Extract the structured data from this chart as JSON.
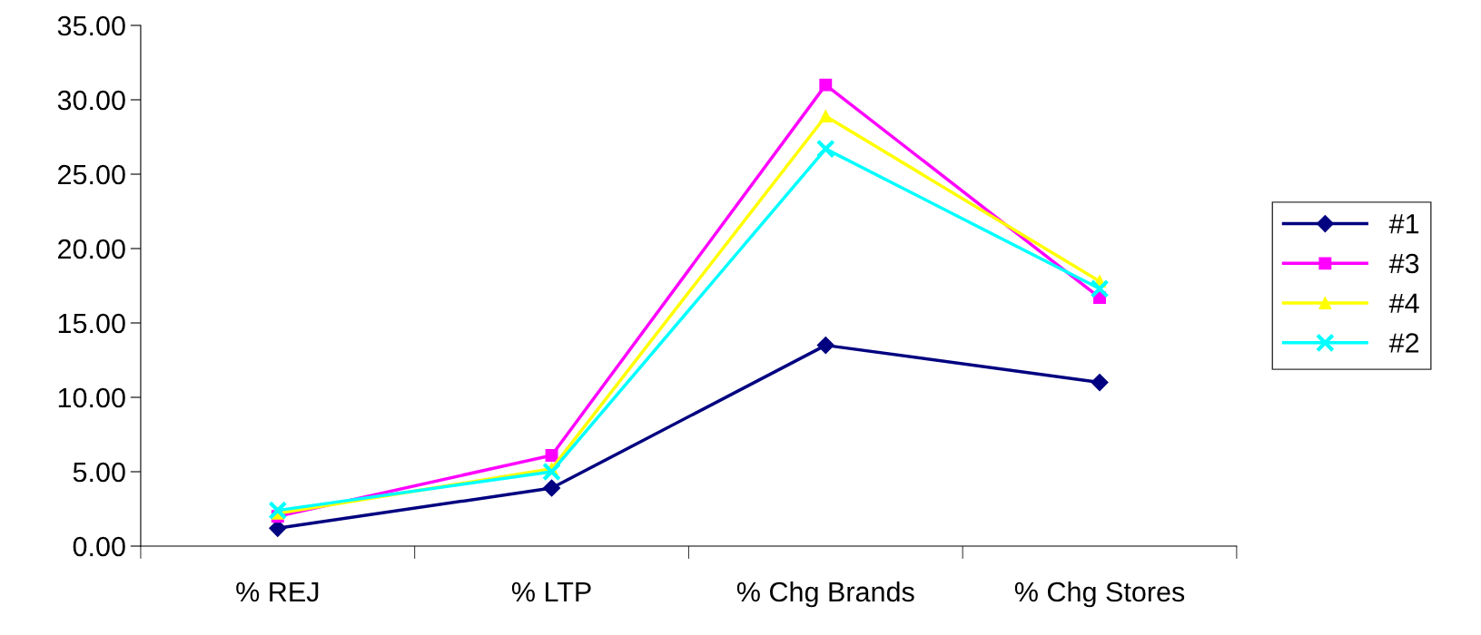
{
  "chart_data": {
    "type": "line",
    "categories": [
      "% REJ",
      "% LTP",
      "% Chg Brands",
      "% Chg Stores"
    ],
    "series": [
      {
        "name": "#1",
        "color": "#000080",
        "marker": "diamond",
        "values": [
          1.2,
          3.9,
          13.5,
          11.0
        ]
      },
      {
        "name": "#3",
        "color": "#ff00ff",
        "marker": "square",
        "values": [
          2.0,
          6.1,
          31.0,
          16.7
        ]
      },
      {
        "name": "#4",
        "color": "#ffff00",
        "marker": "triangle",
        "values": [
          2.2,
          5.2,
          28.9,
          17.8
        ]
      },
      {
        "name": "#2",
        "color": "#00ffff",
        "marker": "cross",
        "values": [
          2.4,
          5.0,
          26.7,
          17.3
        ]
      }
    ],
    "ylim": [
      0,
      35
    ],
    "yticks": [
      {
        "value": 0,
        "label": "0.00"
      },
      {
        "value": 5,
        "label": "5.00"
      },
      {
        "value": 10,
        "label": "10.00"
      },
      {
        "value": 15,
        "label": "15.00"
      },
      {
        "value": 20,
        "label": "20.00"
      },
      {
        "value": 25,
        "label": "25.00"
      },
      {
        "value": 30,
        "label": "30.00"
      },
      {
        "value": 35,
        "label": "35.00"
      }
    ],
    "grid": false,
    "legend": "right",
    "line_style": "solid"
  }
}
